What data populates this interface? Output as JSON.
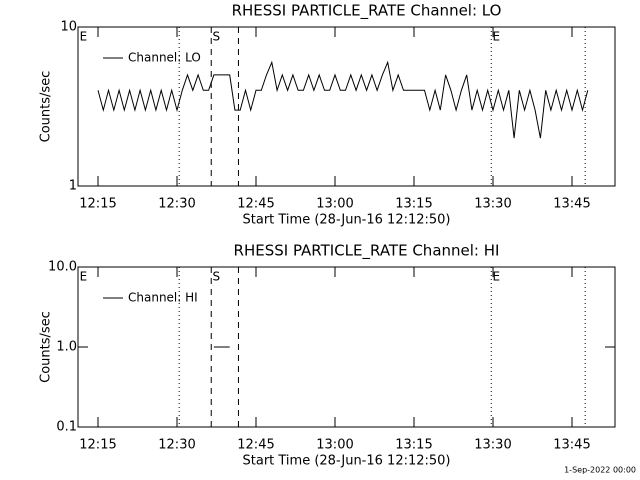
{
  "chart_data": [
    {
      "type": "line",
      "title": "RHESSI PARTICLE_RATE Channel: LO",
      "xlabel": "Start Time (28-Jun-16 12:12:50)",
      "ylabel": "Counts/sec",
      "x": [
        "12:15",
        "12:16",
        "12:17",
        "12:18",
        "12:19",
        "12:20",
        "12:21",
        "12:22",
        "12:23",
        "12:24",
        "12:25",
        "12:26",
        "12:27",
        "12:28",
        "12:29",
        "12:30",
        "12:31",
        "12:32",
        "12:33",
        "12:34",
        "12:35",
        "12:36",
        "12:37",
        "12:38",
        "12:39",
        "12:40",
        "12:41",
        "12:42",
        "12:43",
        "12:44",
        "12:45",
        "12:46",
        "12:47",
        "12:48",
        "12:49",
        "12:50",
        "12:51",
        "12:52",
        "12:53",
        "12:54",
        "12:55",
        "12:56",
        "12:57",
        "12:58",
        "12:59",
        "13:00",
        "13:01",
        "13:02",
        "13:03",
        "13:04",
        "13:05",
        "13:06",
        "13:07",
        "13:08",
        "13:09",
        "13:10",
        "13:11",
        "13:12",
        "13:13",
        "13:14",
        "13:15",
        "13:16",
        "13:17",
        "13:18",
        "13:19",
        "13:20",
        "13:21",
        "13:22",
        "13:23",
        "13:24",
        "13:25",
        "13:26",
        "13:27",
        "13:28",
        "13:29",
        "13:30",
        "13:31",
        "13:32",
        "13:33",
        "13:34",
        "13:35",
        "13:36",
        "13:37",
        "13:38",
        "13:39",
        "13:40",
        "13:41",
        "13:42",
        "13:43",
        "13:44",
        "13:45",
        "13:46",
        "13:47",
        "13:48"
      ],
      "series": [
        {
          "name": "Channel: LO",
          "color": "#000000",
          "values": [
            4,
            3,
            4,
            3,
            4,
            3,
            4,
            3,
            4,
            3,
            4,
            3,
            4,
            3,
            4,
            3,
            4,
            5,
            4,
            5,
            4,
            4,
            5,
            5,
            5,
            5,
            3,
            3,
            4,
            3,
            4,
            4,
            5,
            6,
            4,
            5,
            4,
            5,
            4,
            4,
            5,
            4,
            5,
            4,
            4,
            5,
            4,
            4,
            5,
            4,
            5,
            4,
            5,
            4,
            5,
            6,
            4,
            5,
            4,
            4,
            4,
            4,
            4,
            3,
            4,
            3,
            5,
            4,
            3,
            4,
            5,
            3,
            4,
            3,
            4,
            3,
            4,
            3,
            4,
            2,
            4,
            3,
            4,
            3,
            2,
            4,
            3,
            4,
            3,
            4,
            3,
            4,
            3,
            4
          ]
        }
      ],
      "xlim": [
        "12:11:12",
        "13:53:10"
      ],
      "xticks": [
        "12:15",
        "12:30",
        "12:45",
        "13:00",
        "13:15",
        "13:30",
        "13:45"
      ],
      "ylim": [
        1,
        10
      ],
      "yticks": [
        1,
        10
      ],
      "log_y": true,
      "legend": "upper left",
      "lines": [
        {
          "x": "12:30:25",
          "style": "dotted"
        },
        {
          "x": "12:36:30",
          "style": "dashed"
        },
        {
          "x": "12:41:40",
          "style": "dashed"
        },
        {
          "x": "13:29:40",
          "style": "dotted"
        },
        {
          "x": "13:47:30",
          "style": "dotted"
        }
      ],
      "flags": [
        {
          "x": "12:11:30",
          "label": "E"
        },
        {
          "x": "12:36:45",
          "label": "S"
        },
        {
          "x": "13:29:55",
          "label": "E"
        }
      ]
    },
    {
      "type": "line",
      "title": "RHESSI PARTICLE_RATE Channel: HI",
      "xlabel": "Start Time (28-Jun-16 12:12:50)",
      "ylabel": "Counts/sec",
      "x": [
        "12:37",
        "12:40"
      ],
      "series": [
        {
          "name": "Channel: HI",
          "color": "#000000",
          "values": [
            1,
            1
          ]
        }
      ],
      "xlim": [
        "12:11:12",
        "13:53:10"
      ],
      "xticks": [
        "12:15",
        "12:30",
        "12:45",
        "13:00",
        "13:15",
        "13:30",
        "13:45"
      ],
      "ylim": [
        0.1,
        10
      ],
      "yticks": [
        0.1,
        {
          "value": 1,
          "label": "1.0"
        },
        {
          "value": 10,
          "label": "10.0"
        }
      ],
      "log_y": true,
      "legend": "upper left",
      "lines": [
        {
          "x": "12:36:30",
          "style": "dashed"
        },
        {
          "x": "12:41:40",
          "style": "dashed"
        },
        {
          "x": "12:30:25",
          "style": "dotted"
        },
        {
          "x": "13:29:40",
          "style": "dotted"
        },
        {
          "x": "13:47:30",
          "style": "dotted"
        }
      ],
      "flags": [
        {
          "x": "12:11:30",
          "label": "E"
        },
        {
          "x": "12:36:45",
          "label": "S"
        },
        {
          "x": "13:29:55",
          "label": "E"
        }
      ]
    }
  ],
  "footer": "1-Sep-2022 00:00"
}
